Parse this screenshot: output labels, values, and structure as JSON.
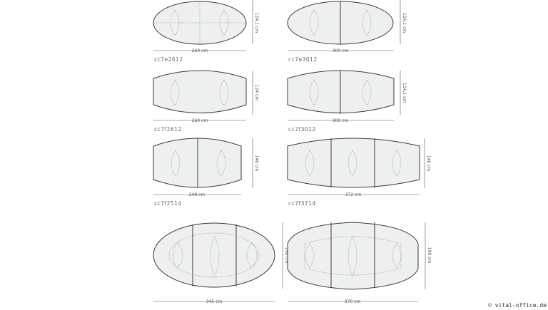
{
  "tables": [
    {
      "code": "cc7e2612",
      "width": "260 cm",
      "depth": "124,1 cm"
    },
    {
      "code": "cc7e3012",
      "width": "300 cm",
      "depth": "124,1 cm"
    },
    {
      "code": "cc7f2612",
      "width": "260 cm",
      "depth": "124 cm"
    },
    {
      "code": "cc7f3012",
      "width": "300 cm",
      "depth": "124,1 cm"
    },
    {
      "code": "cc7f2514",
      "width": "248 cm",
      "depth": "140 cm"
    },
    {
      "code": "cc7f3714",
      "width": "372 cm",
      "depth": "140 cm"
    },
    {
      "width": "345 cm",
      "depth": "190 cm"
    },
    {
      "width": "370 cm",
      "depth": "190 cm"
    }
  ],
  "copyright": "© vital-office.de"
}
